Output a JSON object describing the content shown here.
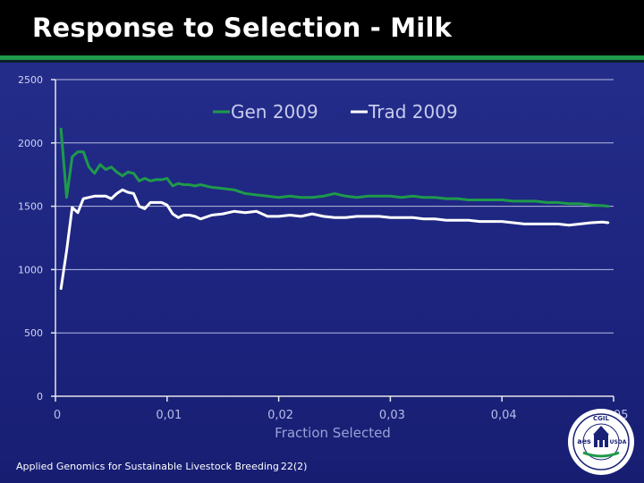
{
  "slide": {
    "title": "Response to Selection - Milk",
    "footer": "Applied Genomics for Sustainable Livestock Breeding",
    "page_number": "22",
    "page_number_overlay": "(2)"
  },
  "logo": {
    "top_text": "CGIL",
    "left_text": "aes",
    "right_text": "USDA",
    "icon": "university-seal-icon"
  },
  "colors": {
    "gen": "#1f9a4a",
    "trad": "#ffffff",
    "axis": "#e8e8e8",
    "grid": "#b8bce0"
  },
  "chart_data": {
    "type": "line",
    "title": "",
    "xlabel": "Fraction Selected",
    "ylabel": "",
    "xlim": [
      0,
      0.05
    ],
    "ylim": [
      0,
      2500
    ],
    "x_ticks": [
      0,
      0.01,
      0.02,
      0.03,
      0.04,
      0.05
    ],
    "x_tick_labels": [
      "0",
      "0,01",
      "0,02",
      "0,03",
      "0,04",
      "0,05"
    ],
    "y_ticks": [
      0,
      500,
      1000,
      1500,
      2000,
      2500
    ],
    "y_tick_labels": [
      "0",
      "500",
      "1000",
      "1500",
      "2000",
      "2500"
    ],
    "grid": "horizontal",
    "legend_position": "top",
    "series": [
      {
        "name": "Gen 2009",
        "color": "#1f9a4a",
        "x": [
          0.0005,
          0.001,
          0.0015,
          0.002,
          0.0025,
          0.003,
          0.0035,
          0.004,
          0.0045,
          0.005,
          0.0055,
          0.006,
          0.0065,
          0.007,
          0.0075,
          0.008,
          0.0085,
          0.009,
          0.0095,
          0.01,
          0.0105,
          0.011,
          0.0115,
          0.012,
          0.0125,
          0.013,
          0.014,
          0.015,
          0.016,
          0.017,
          0.018,
          0.019,
          0.02,
          0.021,
          0.022,
          0.023,
          0.024,
          0.025,
          0.026,
          0.027,
          0.028,
          0.029,
          0.03,
          0.031,
          0.032,
          0.033,
          0.034,
          0.035,
          0.036,
          0.037,
          0.038,
          0.039,
          0.04,
          0.041,
          0.042,
          0.043,
          0.044,
          0.045,
          0.046,
          0.047,
          0.048,
          0.049,
          0.0495
        ],
        "y": [
          2110,
          1570,
          1890,
          1930,
          1930,
          1810,
          1760,
          1830,
          1790,
          1810,
          1770,
          1740,
          1770,
          1760,
          1700,
          1720,
          1700,
          1710,
          1710,
          1720,
          1660,
          1680,
          1670,
          1670,
          1660,
          1670,
          1650,
          1640,
          1630,
          1600,
          1590,
          1580,
          1570,
          1580,
          1570,
          1570,
          1580,
          1600,
          1580,
          1570,
          1580,
          1580,
          1580,
          1570,
          1580,
          1570,
          1570,
          1560,
          1560,
          1550,
          1550,
          1550,
          1550,
          1540,
          1540,
          1540,
          1530,
          1530,
          1520,
          1520,
          1510,
          1505,
          1500
        ]
      },
      {
        "name": "Trad 2009",
        "color": "#ffffff",
        "x": [
          0.0005,
          0.001,
          0.0015,
          0.002,
          0.0025,
          0.003,
          0.0035,
          0.004,
          0.0045,
          0.005,
          0.0055,
          0.006,
          0.0065,
          0.007,
          0.0075,
          0.008,
          0.0085,
          0.009,
          0.0095,
          0.01,
          0.0105,
          0.011,
          0.0115,
          0.012,
          0.0125,
          0.013,
          0.014,
          0.015,
          0.016,
          0.017,
          0.018,
          0.019,
          0.02,
          0.021,
          0.022,
          0.023,
          0.024,
          0.025,
          0.026,
          0.027,
          0.028,
          0.029,
          0.03,
          0.031,
          0.032,
          0.033,
          0.034,
          0.035,
          0.036,
          0.037,
          0.038,
          0.039,
          0.04,
          0.041,
          0.042,
          0.043,
          0.044,
          0.045,
          0.046,
          0.047,
          0.048,
          0.049,
          0.0495
        ],
        "y": [
          850,
          1150,
          1490,
          1450,
          1560,
          1570,
          1580,
          1580,
          1580,
          1560,
          1600,
          1630,
          1610,
          1600,
          1500,
          1480,
          1530,
          1530,
          1530,
          1510,
          1440,
          1410,
          1430,
          1430,
          1420,
          1400,
          1430,
          1440,
          1460,
          1450,
          1460,
          1420,
          1420,
          1430,
          1420,
          1440,
          1420,
          1410,
          1410,
          1420,
          1420,
          1420,
          1410,
          1410,
          1410,
          1400,
          1400,
          1390,
          1390,
          1390,
          1380,
          1380,
          1380,
          1370,
          1360,
          1360,
          1360,
          1360,
          1350,
          1360,
          1370,
          1375,
          1370
        ]
      }
    ]
  }
}
